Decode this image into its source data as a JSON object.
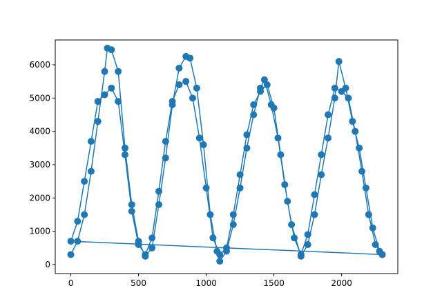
{
  "chart_data": {
    "type": "line",
    "color": "#1f77b4",
    "marker": "circle",
    "x": [
      0,
      50,
      100,
      150,
      200,
      250,
      270,
      300,
      350,
      400,
      450,
      500,
      550,
      600,
      650,
      700,
      750,
      800,
      850,
      880,
      930,
      980,
      1030,
      1080,
      1100,
      1150,
      1200,
      1250,
      1300,
      1350,
      1400,
      1430,
      1480,
      1530,
      1580,
      1630,
      1700,
      1750,
      1800,
      1850,
      1900,
      1950,
      1980,
      2030,
      2080,
      2130,
      2180,
      2230,
      2280,
      2300,
      0,
      50,
      100,
      150,
      200,
      250,
      300,
      350,
      400,
      450,
      500,
      550,
      600,
      650,
      700,
      750,
      800,
      850,
      900,
      950,
      1000,
      1050,
      1100,
      1150,
      1200,
      1250,
      1300,
      1350,
      1400,
      1450,
      1500,
      1550,
      1600,
      1650,
      1700,
      1750,
      1800,
      1850,
      1900,
      1950,
      2000,
      2050,
      2100,
      2150,
      2200,
      2250,
      2300
    ],
    "values": [
      300,
      700,
      1500,
      2800,
      4300,
      5800,
      6500,
      6450,
      5800,
      3500,
      1800,
      700,
      250,
      500,
      1800,
      3200,
      4800,
      5900,
      6250,
      6200,
      5300,
      3600,
      1500,
      400,
      100,
      400,
      1200,
      2300,
      3500,
      4500,
      5300,
      5550,
      4800,
      3800,
      2400,
      1200,
      250,
      600,
      1500,
      2700,
      3800,
      5000,
      6100,
      5300,
      4300,
      3500,
      2300,
      1100,
      400,
      300,
      700,
      1300,
      2500,
      3700,
      4900,
      5100,
      5300,
      4900,
      3300,
      1600,
      600,
      300,
      800,
      2200,
      3700,
      4900,
      5400,
      5500,
      5000,
      3800,
      2300,
      800,
      300,
      500,
      1500,
      2700,
      3900,
      4800,
      5200,
      5400,
      4700,
      3300,
      1900,
      800,
      300,
      900,
      2100,
      3300,
      4500,
      5300,
      5200,
      5000,
      4000,
      2800,
      1500,
      600,
      300
    ],
    "xlim": [
      -115,
      2415
    ],
    "ylim": [
      -270,
      6745
    ],
    "xticks": [
      0,
      500,
      1000,
      1500,
      2000
    ],
    "yticks": [
      0,
      1000,
      2000,
      3000,
      4000,
      5000,
      6000
    ]
  }
}
